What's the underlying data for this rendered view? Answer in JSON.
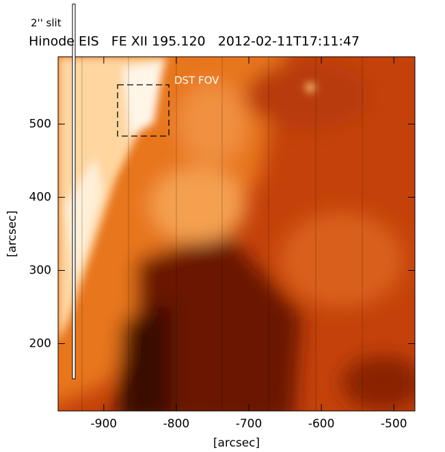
{
  "chart_data": {
    "type": "image",
    "title": "Hinode EIS   FE XII 195.120   2012-02-11T17:11:47",
    "annotations": [
      "2'' slit",
      "DST FOV"
    ],
    "xlabel": "[arcsec]",
    "ylabel": "[arcsec]",
    "xlim": [
      -963,
      -471
    ],
    "ylim": [
      108,
      592
    ],
    "xticks": [
      -900,
      -800,
      -700,
      -600,
      -500
    ],
    "yticks": [
      200,
      300,
      400,
      500
    ]
  }
}
